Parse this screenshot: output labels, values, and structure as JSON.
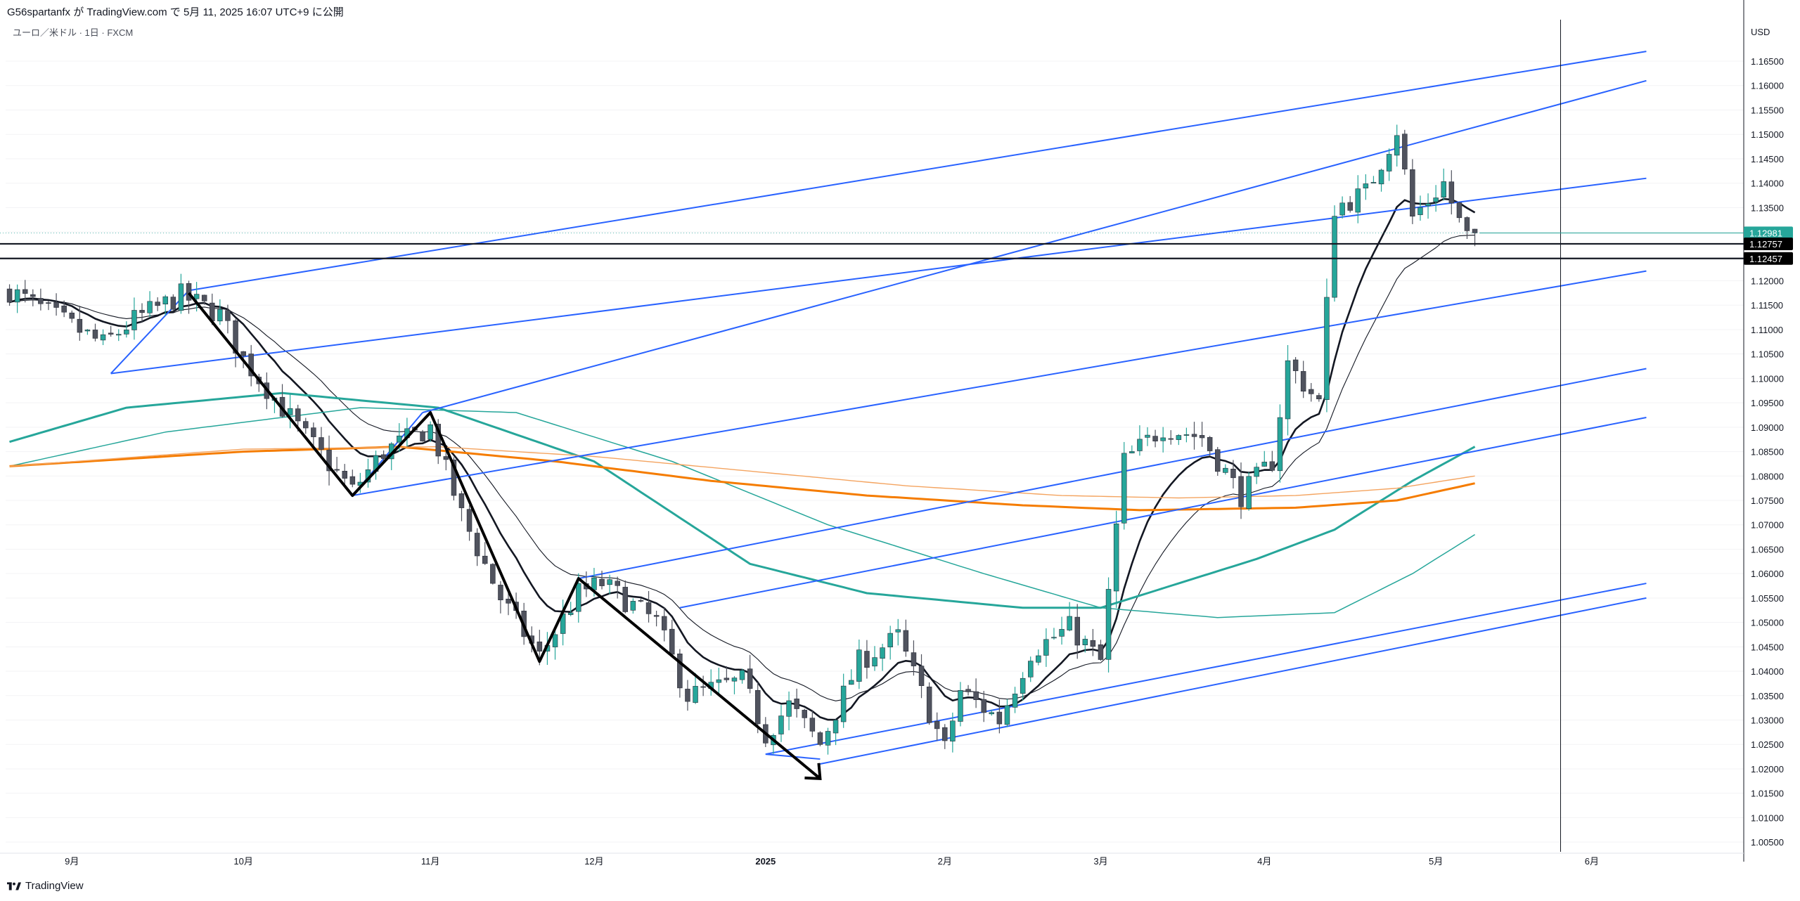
{
  "header": {
    "publisher_line": "G56spartanfx が TradingView.com で 5月 11, 2025 16:07 UTC+9 に公開",
    "symbol_line": "ユーロ／米ドル · 1日 · FXCM"
  },
  "brand": {
    "name": "TradingView"
  },
  "colors": {
    "bull": "#26a69a",
    "bear": "#50535e",
    "channel": "#2962ff",
    "ema_dark": "#131722",
    "ma_teal": "#26a69a",
    "ma_orange": "#f57c00",
    "level_line": "#131722",
    "price_badge": "#26a69a"
  },
  "chart_data": {
    "type": "candlestick",
    "currency": "USD",
    "ylim": [
      1.003,
      1.1735
    ],
    "y_ticks": [
      "1.16500",
      "1.16000",
      "1.15500",
      "1.15000",
      "1.14500",
      "1.14000",
      "1.13500",
      "1.13000",
      "1.12500",
      "1.12000",
      "1.11500",
      "1.11000",
      "1.10500",
      "1.10000",
      "1.09500",
      "1.09000",
      "1.08500",
      "1.08000",
      "1.07500",
      "1.07000",
      "1.06500",
      "1.06000",
      "1.05500",
      "1.05000",
      "1.04500",
      "1.04000",
      "1.03500",
      "1.03000",
      "1.02500",
      "1.02000",
      "1.01500",
      "1.01000",
      "1.00500"
    ],
    "x_ticks": [
      {
        "label": "9月",
        "bar": 8
      },
      {
        "label": "10月",
        "bar": 30
      },
      {
        "label": "11月",
        "bar": 54
      },
      {
        "label": "12月",
        "bar": 75
      },
      {
        "label": "2025",
        "bar": 97,
        "bold": true
      },
      {
        "label": "2月",
        "bar": 120
      },
      {
        "label": "3月",
        "bar": 140
      },
      {
        "label": "4月",
        "bar": 161
      },
      {
        "label": "5月",
        "bar": 183
      },
      {
        "label": "6月",
        "bar": 203
      }
    ],
    "bar_count_visible": 223,
    "last_bar": 188,
    "vertical_marker_bar": 199,
    "price_badges": [
      {
        "label": "1.12981",
        "value": 1.12981,
        "style": "current"
      },
      {
        "label": "1.12757",
        "value": 1.12757,
        "style": "level"
      },
      {
        "label": "1.12457",
        "value": 1.12457,
        "style": "level"
      }
    ],
    "horizontal_levels": [
      1.12757,
      1.12457
    ],
    "anchors": [
      {
        "bar": 0,
        "close": 1.118
      },
      {
        "bar": 12,
        "close": 1.107
      },
      {
        "bar": 16,
        "close": 1.112
      },
      {
        "bar": 22,
        "close": 1.117
      },
      {
        "bar": 27,
        "close": 1.113
      },
      {
        "bar": 30,
        "close": 1.104
      },
      {
        "bar": 38,
        "close": 1.088
      },
      {
        "bar": 44,
        "close": 1.077
      },
      {
        "bar": 48,
        "close": 1.085
      },
      {
        "bar": 54,
        "close": 1.09
      },
      {
        "bar": 58,
        "close": 1.072
      },
      {
        "bar": 63,
        "close": 1.055
      },
      {
        "bar": 68,
        "close": 1.043
      },
      {
        "bar": 73,
        "close": 1.056
      },
      {
        "bar": 76,
        "close": 1.058
      },
      {
        "bar": 83,
        "close": 1.05
      },
      {
        "bar": 87,
        "close": 1.035
      },
      {
        "bar": 94,
        "close": 1.038
      },
      {
        "bar": 97,
        "close": 1.027
      },
      {
        "bar": 100,
        "close": 1.033
      },
      {
        "bar": 104,
        "close": 1.025
      },
      {
        "bar": 109,
        "close": 1.042
      },
      {
        "bar": 114,
        "close": 1.047
      },
      {
        "bar": 120,
        "close": 1.024
      },
      {
        "bar": 122,
        "close": 1.036
      },
      {
        "bar": 127,
        "close": 1.03
      },
      {
        "bar": 131,
        "close": 1.044
      },
      {
        "bar": 136,
        "close": 1.049
      },
      {
        "bar": 140,
        "close": 1.042
      },
      {
        "bar": 143,
        "close": 1.083
      },
      {
        "bar": 148,
        "close": 1.09
      },
      {
        "bar": 153,
        "close": 1.088
      },
      {
        "bar": 158,
        "close": 1.076
      },
      {
        "bar": 162,
        "close": 1.083
      },
      {
        "bar": 164,
        "close": 1.103
      },
      {
        "bar": 168,
        "close": 1.095
      },
      {
        "bar": 170,
        "close": 1.135
      },
      {
        "bar": 174,
        "close": 1.138
      },
      {
        "bar": 178,
        "close": 1.151
      },
      {
        "bar": 180,
        "close": 1.133
      },
      {
        "bar": 184,
        "close": 1.14
      },
      {
        "bar": 186,
        "close": 1.132
      },
      {
        "bar": 187,
        "close": 1.129
      },
      {
        "bar": 188,
        "close": 1.1298
      }
    ],
    "moving_averages": [
      {
        "key": "ema_fast",
        "color": "#131722",
        "width": 2.6,
        "period": 10
      },
      {
        "key": "ema_slow",
        "color": "#131722",
        "width": 1.1,
        "period": 20
      },
      {
        "key": "teal_thick",
        "points": [
          [
            0,
            1.087
          ],
          [
            15,
            1.094
          ],
          [
            35,
            1.097
          ],
          [
            55,
            1.094
          ],
          [
            75,
            1.083
          ],
          [
            95,
            1.062
          ],
          [
            110,
            1.056
          ],
          [
            130,
            1.053
          ],
          [
            140,
            1.053
          ],
          [
            150,
            1.058
          ],
          [
            160,
            1.063
          ],
          [
            170,
            1.069
          ],
          [
            180,
            1.079
          ],
          [
            188,
            1.086
          ]
        ],
        "color": "#26a69a",
        "width": 3
      },
      {
        "key": "teal_thin",
        "points": [
          [
            0,
            1.082
          ],
          [
            20,
            1.089
          ],
          [
            45,
            1.094
          ],
          [
            65,
            1.093
          ],
          [
            85,
            1.083
          ],
          [
            105,
            1.07
          ],
          [
            125,
            1.06
          ],
          [
            140,
            1.053
          ],
          [
            155,
            1.051
          ],
          [
            170,
            1.052
          ],
          [
            180,
            1.06
          ],
          [
            188,
            1.068
          ]
        ],
        "color": "#26a69a",
        "width": 1.5
      },
      {
        "key": "orange_thick",
        "points": [
          [
            0,
            1.082
          ],
          [
            30,
            1.085
          ],
          [
            50,
            1.086
          ],
          [
            70,
            1.083
          ],
          [
            90,
            1.079
          ],
          [
            110,
            1.076
          ],
          [
            130,
            1.074
          ],
          [
            145,
            1.073
          ],
          [
            165,
            1.0735
          ],
          [
            178,
            1.075
          ],
          [
            188,
            1.0785
          ]
        ],
        "color": "#f57c00",
        "width": 3
      },
      {
        "key": "orange_thin",
        "points": [
          [
            0,
            1.082
          ],
          [
            30,
            1.0855
          ],
          [
            55,
            1.086
          ],
          [
            75,
            1.084
          ],
          [
            95,
            1.081
          ],
          [
            115,
            1.078
          ],
          [
            135,
            1.076
          ],
          [
            150,
            1.0755
          ],
          [
            165,
            1.076
          ],
          [
            178,
            1.0775
          ],
          [
            188,
            1.08
          ]
        ],
        "color": "#f4a460",
        "width": 1.4
      }
    ],
    "channel_lines": [
      {
        "from": [
          23,
          1.118
        ],
        "to": [
          210,
          1.167
        ]
      },
      {
        "from": [
          53,
          1.093
        ],
        "to": [
          210,
          1.161
        ]
      },
      {
        "from": [
          13,
          1.101
        ],
        "to": [
          210,
          1.141
        ]
      },
      {
        "from": [
          44,
          1.076
        ],
        "to": [
          210,
          1.122
        ]
      },
      {
        "from": [
          73,
          1.059
        ],
        "to": [
          210,
          1.102
        ]
      },
      {
        "from": [
          86,
          1.053
        ],
        "to": [
          210,
          1.092
        ]
      },
      {
        "from": [
          97,
          1.023
        ],
        "to": [
          210,
          1.058
        ]
      },
      {
        "from": [
          104,
          1.021
        ],
        "to": [
          210,
          1.055
        ]
      }
    ],
    "channel_bases": [
      {
        "from": [
          13,
          1.101
        ],
        "to": [
          23,
          1.118
        ]
      },
      {
        "from": [
          44,
          1.076
        ],
        "to": [
          53,
          1.093
        ]
      },
      {
        "from": [
          97,
          1.023
        ],
        "to": [
          104,
          1.022
        ]
      }
    ],
    "zigzag": [
      [
        23,
        1.1175
      ],
      [
        44,
        1.076
      ],
      [
        54,
        1.093
      ],
      [
        68,
        1.042
      ],
      [
        73,
        1.059
      ],
      [
        104,
        1.018
      ]
    ]
  }
}
